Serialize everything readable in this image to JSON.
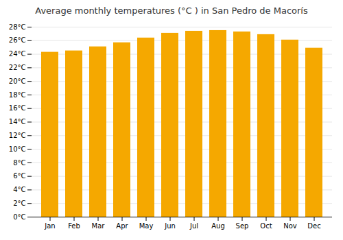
{
  "chart_data": {
    "type": "bar",
    "title": "Average monthly temperatures (°C ) in San Pedro de Macorís",
    "categories": [
      "Jan",
      "Feb",
      "Mar",
      "Apr",
      "May",
      "Jun",
      "Jul",
      "Aug",
      "Sep",
      "Oct",
      "Nov",
      "Dec"
    ],
    "values": [
      24.3,
      24.5,
      25.1,
      25.7,
      26.4,
      27.1,
      27.4,
      27.5,
      27.3,
      26.9,
      26.1,
      24.9
    ],
    "color": "#F5A800",
    "ylim": [
      0,
      28
    ],
    "yticks": [
      {
        "value": 0,
        "label": "0°C"
      },
      {
        "value": 2,
        "label": "2°C"
      },
      {
        "value": 4,
        "label": "4°C"
      },
      {
        "value": 6,
        "label": "6°C"
      },
      {
        "value": 8,
        "label": "8°C"
      },
      {
        "value": 10,
        "label": "10°C"
      },
      {
        "value": 12,
        "label": "12°C"
      },
      {
        "value": 14,
        "label": "14°C"
      },
      {
        "value": 16,
        "label": "16°C"
      },
      {
        "value": 18,
        "label": "18°C"
      },
      {
        "value": 20,
        "label": "20°C"
      },
      {
        "value": 22,
        "label": "22°C"
      },
      {
        "value": 24,
        "label": "24°C"
      },
      {
        "value": 26,
        "label": "26°C"
      },
      {
        "value": 28,
        "label": "28°C"
      }
    ],
    "grid": true
  }
}
